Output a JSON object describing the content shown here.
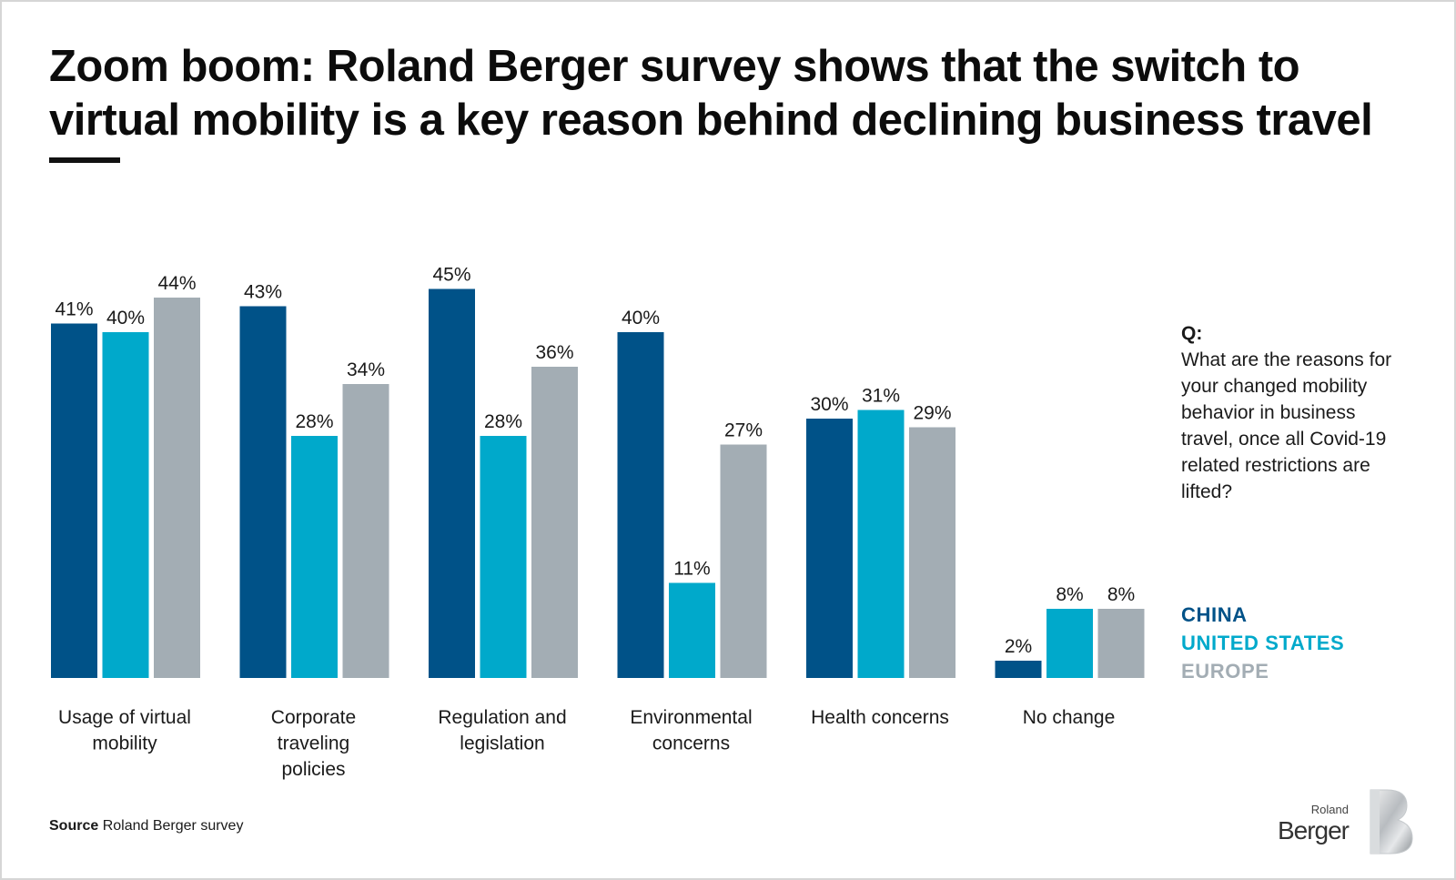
{
  "title": "Zoom boom: Roland Berger survey shows that the switch to virtual mobility is a key reason behind declining business travel",
  "question": {
    "label": "Q:",
    "text": "What are the reasons for your changed mobility behavior in business travel, once all Covid-19 related restrictions are lifted?"
  },
  "source": {
    "label": "Source",
    "text": "Roland Berger survey"
  },
  "logo": {
    "line1": "Roland",
    "line2": "Berger",
    "icon": "roland-berger-b-logo-icon"
  },
  "colors": {
    "china": "#005288",
    "united_states": "#00a9cb",
    "europe": "#a3adb4"
  },
  "chart_data": {
    "type": "bar",
    "categories": [
      [
        "Usage of virtual",
        "mobility"
      ],
      [
        "Corporate",
        "traveling",
        "policies"
      ],
      [
        "Regulation and",
        "legislation"
      ],
      [
        "Environmental",
        "concerns"
      ],
      [
        "Health concerns"
      ],
      [
        "No change"
      ]
    ],
    "series": [
      {
        "name": "CHINA",
        "color": "#005288",
        "values": [
          41,
          43,
          45,
          40,
          30,
          2
        ]
      },
      {
        "name": "UNITED STATES",
        "color": "#00a9cb",
        "values": [
          40,
          28,
          28,
          11,
          31,
          8
        ]
      },
      {
        "name": "EUROPE",
        "color": "#a3adb4",
        "values": [
          44,
          34,
          36,
          27,
          29,
          8
        ]
      }
    ],
    "value_suffix": "%",
    "ylim": [
      0,
      45
    ],
    "grid": false,
    "legend_position": "right",
    "xlabel": "",
    "ylabel": ""
  }
}
